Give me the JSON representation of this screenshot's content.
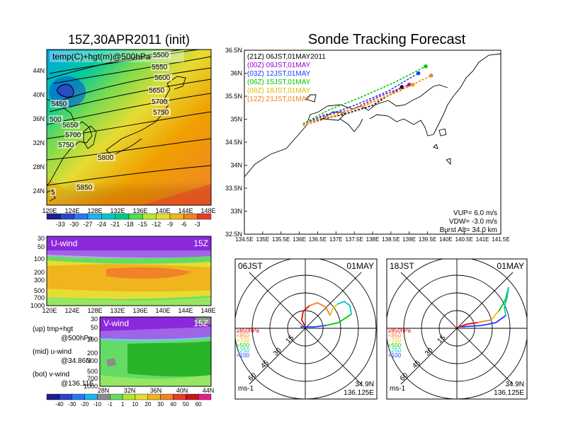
{
  "title_left": "15Z,30APR2011 (init)",
  "title_right": "Sonde Tracking Forecast",
  "map_panel": {
    "label": "temp(C)+hgt(m)@500hPa",
    "x_ticks": [
      "120E",
      "124E",
      "128E",
      "132E",
      "136E",
      "140E",
      "144E",
      "148E"
    ],
    "y_ticks": [
      "44N",
      "40N",
      "36N",
      "32N",
      "28N",
      "24N"
    ],
    "contour_labels": [
      "5500",
      "5550",
      "5600",
      "5650",
      "5700",
      "5750",
      "5450",
      "500",
      "5650",
      "5700",
      "5750",
      "5800",
      "5850",
      "5"
    ],
    "colorbar_labels": [
      "-33",
      "-30",
      "-27",
      "-24",
      "-21",
      "-18",
      "-15",
      "-12",
      "-9",
      "-6",
      "-3"
    ]
  },
  "uwind_panel": {
    "label": "U-wind",
    "time": "15Z",
    "y_ticks": [
      "30",
      "50",
      "100",
      "200",
      "300",
      "500",
      "700",
      "1000"
    ],
    "x_ticks": [
      "120E",
      "124E",
      "128E",
      "132E",
      "136E",
      "140E",
      "144E",
      "148E"
    ]
  },
  "vwind_panel": {
    "label": "V-wind",
    "time": "15Z",
    "y_ticks": [
      "30",
      "50",
      "100",
      "200",
      "300",
      "500",
      "700",
      "1000"
    ],
    "x_ticks": [
      "28N",
      "32N",
      "36N",
      "40N",
      "44N"
    ],
    "colorbar_labels": [
      "-40",
      "-30",
      "-20",
      "-10",
      "-1",
      "1",
      "10",
      "20",
      "30",
      "40",
      "50",
      "60"
    ]
  },
  "legend_notes": [
    {
      "a": "(up) tmp+hgt",
      "b": "@500hPa"
    },
    {
      "a": "(mid) u-wind",
      "b": "@34.86N"
    },
    {
      "a": "(bot) v-wind",
      "b": "@136.11E"
    }
  ],
  "track_panel": {
    "entries": [
      {
        "label": "(21Z)  06JST,01MAY2011",
        "color": "#000000"
      },
      {
        "label": "(00Z)  09JST,01MAY",
        "color": "#a000c8"
      },
      {
        "label": "(03Z)  12JST,01MAY",
        "color": "#1e3cff"
      },
      {
        "label": "(06Z)  15JST,01MAY",
        "color": "#00c800"
      },
      {
        "label": "(09Z)  18JST,01MAY",
        "color": "#e6b400"
      },
      {
        "label": "(12Z)  21JST,01MAY",
        "color": "#f08228"
      }
    ],
    "x_ticks": [
      "134.5E",
      "135E",
      "135.5E",
      "136E",
      "136.5E",
      "137E",
      "137.5E",
      "138E",
      "138.5E",
      "139E",
      "139.5E",
      "140E",
      "140.5E",
      "141E",
      "141.5E"
    ],
    "y_ticks": [
      "36.5N",
      "36N",
      "35.5N",
      "35N",
      "34.5N",
      "34N",
      "33.5N",
      "33N",
      "32.5N"
    ],
    "params": [
      "VUP= 6.0 m/s",
      "VDW= -3.0 m/s",
      "Burst Alt= 34.0 km"
    ]
  },
  "hodo_left": {
    "time": "06JST",
    "date": "01MAY",
    "lat": "34.9N",
    "lon": "136.125E",
    "units": "ms-1",
    "rings": [
      "15",
      "30",
      "45",
      "60"
    ]
  },
  "hodo_right": {
    "time": "18JST",
    "date": "01MAY",
    "lat": "34.9N",
    "lon": "136.125E",
    "units": "ms-1",
    "rings": [
      "15",
      "30",
      "45",
      "60"
    ]
  },
  "hodo_levels": [
    {
      "label": "≥850hPa",
      "color": "#e60000"
    },
    {
      "label": "<850",
      "color": "#f08228"
    },
    {
      "label": "<700",
      "color": "#e6c800"
    },
    {
      "label": "<500",
      "color": "#00c800"
    },
    {
      "label": "<250",
      "color": "#00c8c8"
    },
    {
      "label": "<100",
      "color": "#1e3cff"
    }
  ],
  "chart_data": [
    {
      "type": "line",
      "title": "Sonde Tracking Forecast",
      "xlim": [
        134.5,
        141.5
      ],
      "ylim": [
        32.5,
        36.5
      ],
      "series": [
        {
          "name": "(21Z) 06JST,01MAY2011",
          "x": [
            136.1,
            136.6,
            137.2,
            138.0,
            138.8
          ],
          "y": [
            34.9,
            35.0,
            35.1,
            35.3,
            35.7
          ]
        },
        {
          "name": "(00Z) 09JST,01MAY",
          "x": [
            136.1,
            136.7,
            137.4,
            138.2,
            139.0
          ],
          "y": [
            34.9,
            35.1,
            35.2,
            35.5,
            35.75
          ]
        },
        {
          "name": "(03Z) 12JST,01MAY",
          "x": [
            136.1,
            136.8,
            137.5,
            138.4,
            139.25
          ],
          "y": [
            34.88,
            35.1,
            35.3,
            35.6,
            36.0
          ]
        },
        {
          "name": "(06Z) 15JST,01MAY",
          "x": [
            136.1,
            136.8,
            137.6,
            138.6,
            139.45
          ],
          "y": [
            34.9,
            35.2,
            35.45,
            35.8,
            36.15
          ]
        },
        {
          "name": "(09Z) 18JST,01MAY",
          "x": [
            136.1,
            136.7,
            137.4,
            138.2,
            139.1
          ],
          "y": [
            34.88,
            35.05,
            35.2,
            35.45,
            35.75
          ]
        },
        {
          "name": "(12Z) 21JST,01MAY",
          "x": [
            136.1,
            136.9,
            137.8,
            138.7,
            139.6
          ],
          "y": [
            34.86,
            35.05,
            35.3,
            35.6,
            35.95
          ]
        }
      ]
    }
  ]
}
